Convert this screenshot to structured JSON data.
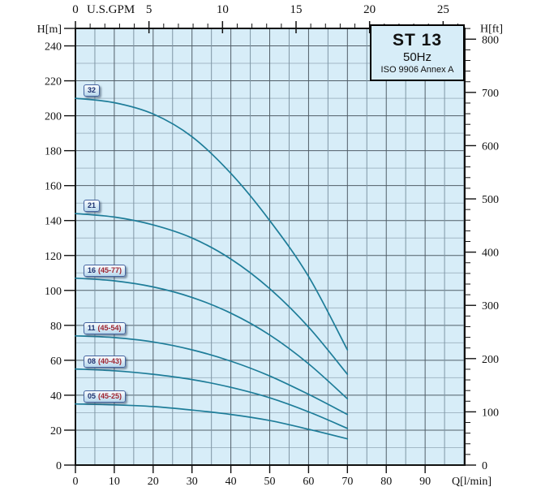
{
  "title_box": {
    "model": "ST 13",
    "frequency": "50Hz",
    "standard": "ISO 9906 Annex A"
  },
  "chart_data": {
    "type": "line",
    "title": "ST 13 pump performance curves, head vs flow",
    "x_axis_bottom": {
      "label": "Q[l/min]",
      "unit": "l/min",
      "ticks": [
        0,
        10,
        20,
        30,
        40,
        50,
        60,
        70,
        80,
        90
      ],
      "max": 100.2,
      "gridline_step": 5
    },
    "x_axis_top": {
      "label": "U.S.GPM",
      "unit": "US gpm",
      "labeled_ticks": [
        0,
        5,
        10,
        15,
        20,
        25
      ],
      "minor_tick_step": 1,
      "liters_per_gpm": 3.78541
    },
    "y_axis_left": {
      "label": "H[m]",
      "unit": "m",
      "ticks": [
        0,
        20,
        40,
        60,
        80,
        100,
        120,
        140,
        160,
        180,
        200,
        220,
        240
      ],
      "top_tick": 250,
      "max": 250,
      "minor_gridline_step": 10,
      "major_gridline_step": 20
    },
    "y_axis_right": {
      "label": "H[ft]",
      "unit": "ft",
      "labeled_ticks": [
        0,
        100,
        200,
        300,
        400,
        500,
        600,
        700,
        800
      ],
      "minor_tick_step": 20,
      "meters_per_foot": 0.3048
    },
    "grid": {
      "vertical_step": 5,
      "vertical_major_step": 10
    },
    "legend_position": "labels-on-curves",
    "series": [
      {
        "code": "32",
        "detail": "",
        "points": [
          [
            0,
            210
          ],
          [
            10,
            207.5
          ],
          [
            20,
            201
          ],
          [
            30,
            188
          ],
          [
            40,
            167
          ],
          [
            50,
            140
          ],
          [
            60,
            108
          ],
          [
            70,
            66
          ]
        ]
      },
      {
        "code": "21",
        "detail": "",
        "points": [
          [
            0,
            144
          ],
          [
            10,
            142
          ],
          [
            20,
            137.5
          ],
          [
            30,
            130
          ],
          [
            40,
            118
          ],
          [
            50,
            101
          ],
          [
            60,
            79
          ],
          [
            70,
            52
          ]
        ]
      },
      {
        "code": "16",
        "detail": "(45-77)",
        "points": [
          [
            0,
            107
          ],
          [
            10,
            105.5
          ],
          [
            20,
            102
          ],
          [
            30,
            96
          ],
          [
            40,
            87
          ],
          [
            50,
            74.5
          ],
          [
            60,
            58
          ],
          [
            70,
            38
          ]
        ]
      },
      {
        "code": "11",
        "detail": "(45-54)",
        "points": [
          [
            0,
            74
          ],
          [
            10,
            73
          ],
          [
            20,
            70.5
          ],
          [
            30,
            66
          ],
          [
            40,
            59.5
          ],
          [
            50,
            51
          ],
          [
            60,
            40.5
          ],
          [
            70,
            29
          ]
        ]
      },
      {
        "code": "08",
        "detail": "(40-43)",
        "points": [
          [
            0,
            55
          ],
          [
            10,
            54
          ],
          [
            20,
            52
          ],
          [
            30,
            49
          ],
          [
            40,
            44.5
          ],
          [
            50,
            38.5
          ],
          [
            60,
            30.5
          ],
          [
            70,
            21
          ]
        ]
      },
      {
        "code": "05",
        "detail": "(45-25)",
        "points": [
          [
            0,
            35
          ],
          [
            10,
            34.5
          ],
          [
            20,
            33.5
          ],
          [
            30,
            31.5
          ],
          [
            40,
            29
          ],
          [
            50,
            25.5
          ],
          [
            60,
            20.5
          ],
          [
            70,
            15
          ]
        ]
      }
    ]
  },
  "colors": {
    "plot_background": "#d7edf8",
    "grid_major": "#515e68",
    "grid_mid": "#7f96a5",
    "grid_minor": "#a3b8c6",
    "axis": "#111111",
    "curve": "#1e7d99",
    "label_code_text": "#1b2f6e",
    "label_detail_text": "#9e2430"
  }
}
